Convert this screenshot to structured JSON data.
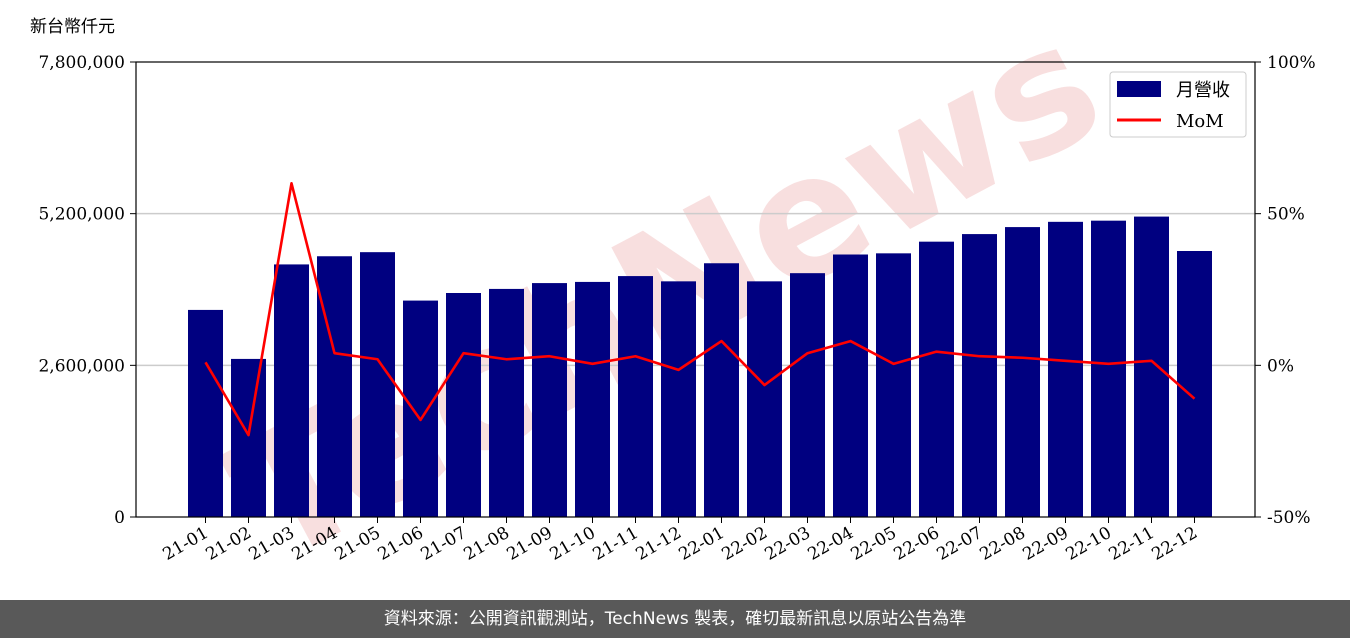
{
  "watermark": "TechNews",
  "footer": {
    "source_text": "資料來源：公開資訊觀測站，TechNews 製表，確切最新訊息以原站公告為準"
  },
  "colors": {
    "bar": "#000080",
    "line": "#ff0000",
    "grid": "#cccccc",
    "watermark": "#f2c4c4"
  },
  "chart_data": {
    "type": "bar",
    "ylabel": "新台幣仟元",
    "categories": [
      "21-01",
      "21-02",
      "21-03",
      "21-04",
      "21-05",
      "21-06",
      "21-07",
      "21-08",
      "21-09",
      "21-10",
      "21-11",
      "21-12",
      "22-01",
      "22-02",
      "22-03",
      "22-04",
      "22-05",
      "22-06",
      "22-07",
      "22-08",
      "22-09",
      "22-10",
      "22-11",
      "22-12"
    ],
    "ylim": [
      0,
      7800000
    ],
    "yticks": [
      0,
      2600000,
      5200000,
      7800000
    ],
    "ytick_labels": [
      "0",
      "2,600,000",
      "5,200,000",
      "7,800,000"
    ],
    "y2lim": [
      -50,
      100
    ],
    "y2ticks": [
      -50,
      0,
      50,
      100
    ],
    "y2tick_labels": [
      "-50%",
      "0%",
      "50%",
      "100%"
    ],
    "grid": "y",
    "legend_position": "top-right",
    "series": [
      {
        "name": "月營收",
        "type": "bar",
        "axis": "left",
        "values": [
          3550000,
          2710000,
          4330000,
          4470000,
          4540000,
          3710000,
          3840000,
          3910000,
          4010000,
          4030000,
          4130000,
          4040000,
          4350000,
          4040000,
          4180000,
          4500000,
          4520000,
          4720000,
          4850000,
          4970000,
          5060000,
          5080000,
          5150000,
          4560000
        ]
      },
      {
        "name": "MoM",
        "type": "line",
        "axis": "right",
        "values": [
          1,
          -23,
          60,
          4,
          2,
          -18,
          4,
          2,
          3,
          0.5,
          3,
          -1.5,
          8,
          -6.5,
          4,
          8,
          0.5,
          4.5,
          3,
          2.5,
          1.5,
          0.5,
          1.5,
          -11
        ]
      }
    ]
  }
}
